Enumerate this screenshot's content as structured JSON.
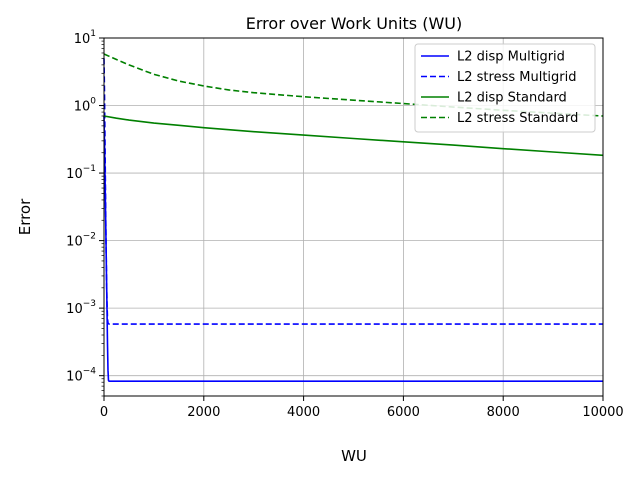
{
  "chart_data": {
    "type": "line",
    "title": "Error over Work Units (WU)",
    "xlabel": "WU",
    "ylabel": "Error",
    "xlim": [
      0,
      10000
    ],
    "ylim": [
      5e-05,
      10
    ],
    "yscale": "log",
    "grid": true,
    "legend_position": "top-right",
    "x_ticks": [
      0,
      2000,
      4000,
      6000,
      8000,
      10000
    ],
    "x_tick_labels": [
      "0",
      "2000",
      "4000",
      "6000",
      "8000",
      "10000"
    ],
    "y_ticks": [
      {
        "value": 0.0001,
        "base": "10",
        "exp": "−4"
      },
      {
        "value": 0.001,
        "base": "10",
        "exp": "−3"
      },
      {
        "value": 0.01,
        "base": "10",
        "exp": "−2"
      },
      {
        "value": 0.1,
        "base": "10",
        "exp": "−1"
      },
      {
        "value": 1,
        "base": "10",
        "exp": "0"
      },
      {
        "value": 10,
        "base": "10",
        "exp": "1"
      }
    ],
    "series": [
      {
        "name": "L2 disp Multigrid",
        "color": "#0000ff",
        "dash": "solid",
        "x": [
          0,
          10,
          20,
          30,
          40,
          50,
          60,
          70,
          80,
          90,
          100,
          200,
          5000,
          10000
        ],
        "y": [
          0.7,
          0.3,
          0.1,
          0.03,
          0.01,
          0.003,
          0.001,
          0.0003,
          0.00012,
          8.5e-05,
          8.3e-05,
          8.3e-05,
          8.3e-05,
          8.3e-05
        ]
      },
      {
        "name": "L2 stress Multigrid",
        "color": "#0000ff",
        "dash": "dashed",
        "x": [
          0,
          10,
          20,
          30,
          40,
          50,
          60,
          70,
          80,
          100,
          200,
          5000,
          10000
        ],
        "y": [
          5,
          1.5,
          0.3,
          0.05,
          0.01,
          0.003,
          0.0012,
          0.0007,
          0.0006,
          0.00058,
          0.00058,
          0.00058,
          0.00058
        ]
      },
      {
        "name": "L2 disp Standard",
        "color": "#008000",
        "dash": "solid",
        "x": [
          0,
          250,
          500,
          1000,
          1500,
          2000,
          3000,
          4000,
          5000,
          6000,
          7000,
          8000,
          9000,
          10000
        ],
        "y": [
          0.7,
          0.65,
          0.61,
          0.55,
          0.51,
          0.47,
          0.41,
          0.365,
          0.325,
          0.29,
          0.26,
          0.23,
          0.205,
          0.183
        ]
      },
      {
        "name": "L2 stress Standard",
        "color": "#008000",
        "dash": "dashed",
        "x": [
          0,
          250,
          500,
          750,
          1000,
          1500,
          2000,
          2500,
          3000,
          4000,
          5000,
          6000,
          7000,
          8000,
          9000,
          10000
        ],
        "y": [
          5.8,
          4.8,
          4.0,
          3.4,
          2.9,
          2.3,
          1.95,
          1.7,
          1.55,
          1.35,
          1.2,
          1.07,
          0.95,
          0.85,
          0.77,
          0.7
        ]
      }
    ]
  }
}
